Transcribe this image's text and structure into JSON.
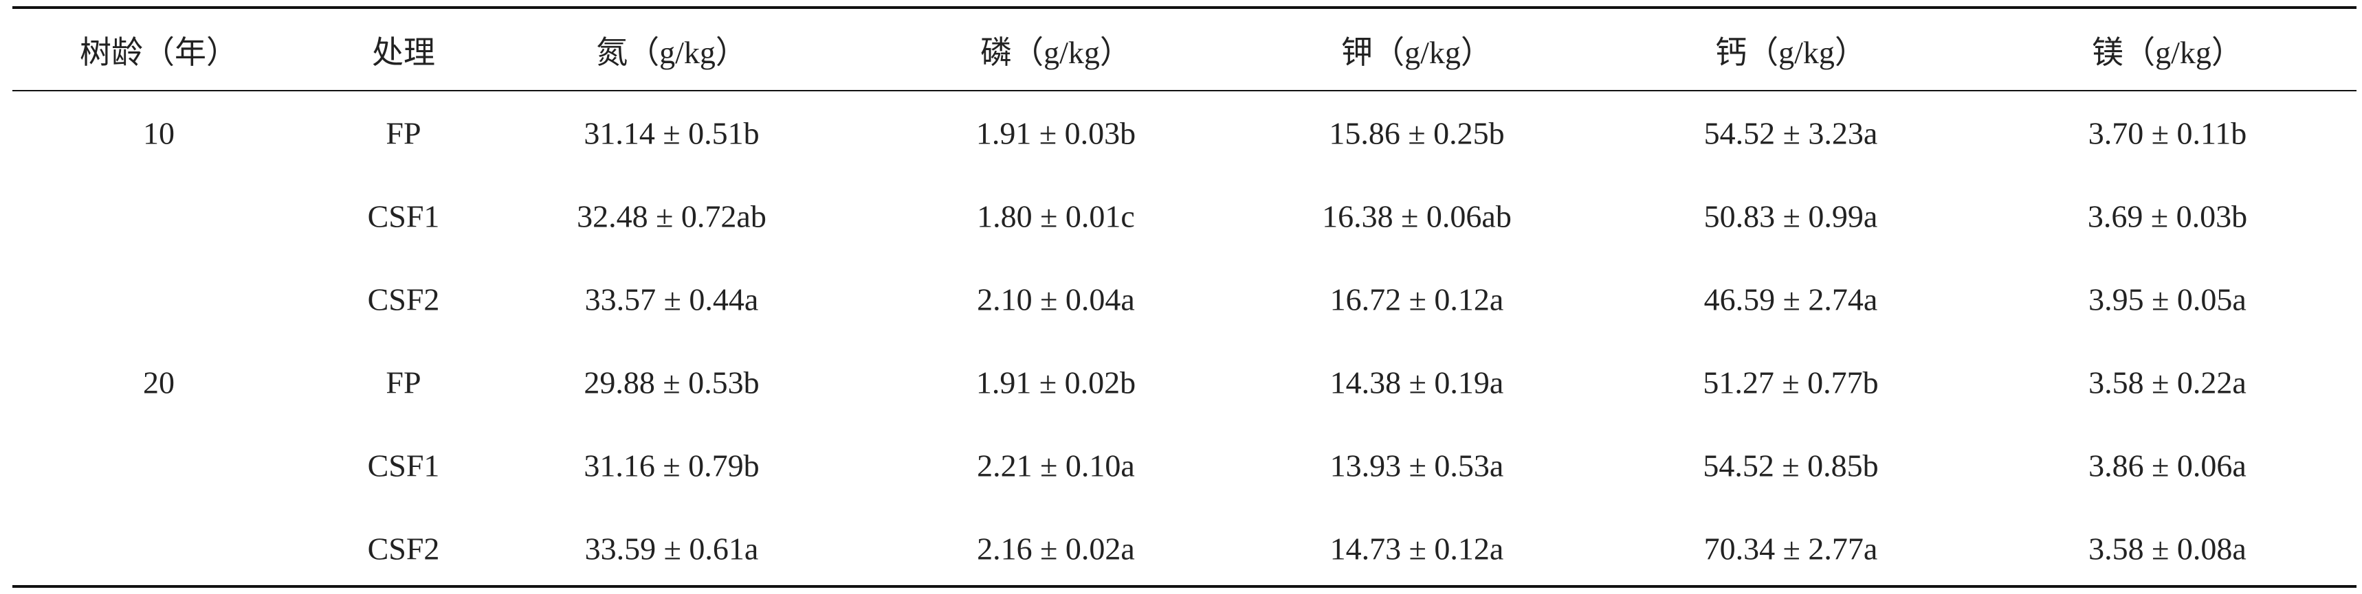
{
  "table": {
    "header": [
      "树龄（年）",
      "处理",
      "氮（g/kg）",
      "磷（g/kg）",
      "钾（g/kg）",
      "钙（g/kg）",
      "镁（g/kg）"
    ],
    "groups": [
      {
        "age": "10",
        "rows": [
          [
            "FP",
            "31.14 ± 0.51b",
            "1.91 ± 0.03b",
            "15.86 ± 0.25b",
            "54.52 ± 3.23a",
            "3.70 ± 0.11b"
          ],
          [
            "CSF1",
            "32.48 ± 0.72ab",
            "1.80 ± 0.01c",
            "16.38 ± 0.06ab",
            "50.83 ± 0.99a",
            "3.69 ± 0.03b"
          ],
          [
            "CSF2",
            "33.57 ± 0.44a",
            "2.10 ± 0.04a",
            "16.72 ± 0.12a",
            "46.59 ± 2.74a",
            "3.95 ± 0.05a"
          ]
        ]
      },
      {
        "age": "20",
        "rows": [
          [
            "FP",
            "29.88 ± 0.53b",
            "1.91 ± 0.02b",
            "14.38 ± 0.19a",
            "51.27 ± 0.77b",
            "3.58 ± 0.22a"
          ],
          [
            "CSF1",
            "31.16 ± 0.79b",
            "2.21 ± 0.10a",
            "13.93 ± 0.53a",
            "54.52 ± 0.85b",
            "3.86 ± 0.06a"
          ],
          [
            "CSF2",
            "33.59 ± 0.61a",
            "2.16 ± 0.02a",
            "14.73 ± 0.12a",
            "70.34 ± 2.77a",
            "3.58 ± 0.08a"
          ]
        ]
      }
    ]
  }
}
